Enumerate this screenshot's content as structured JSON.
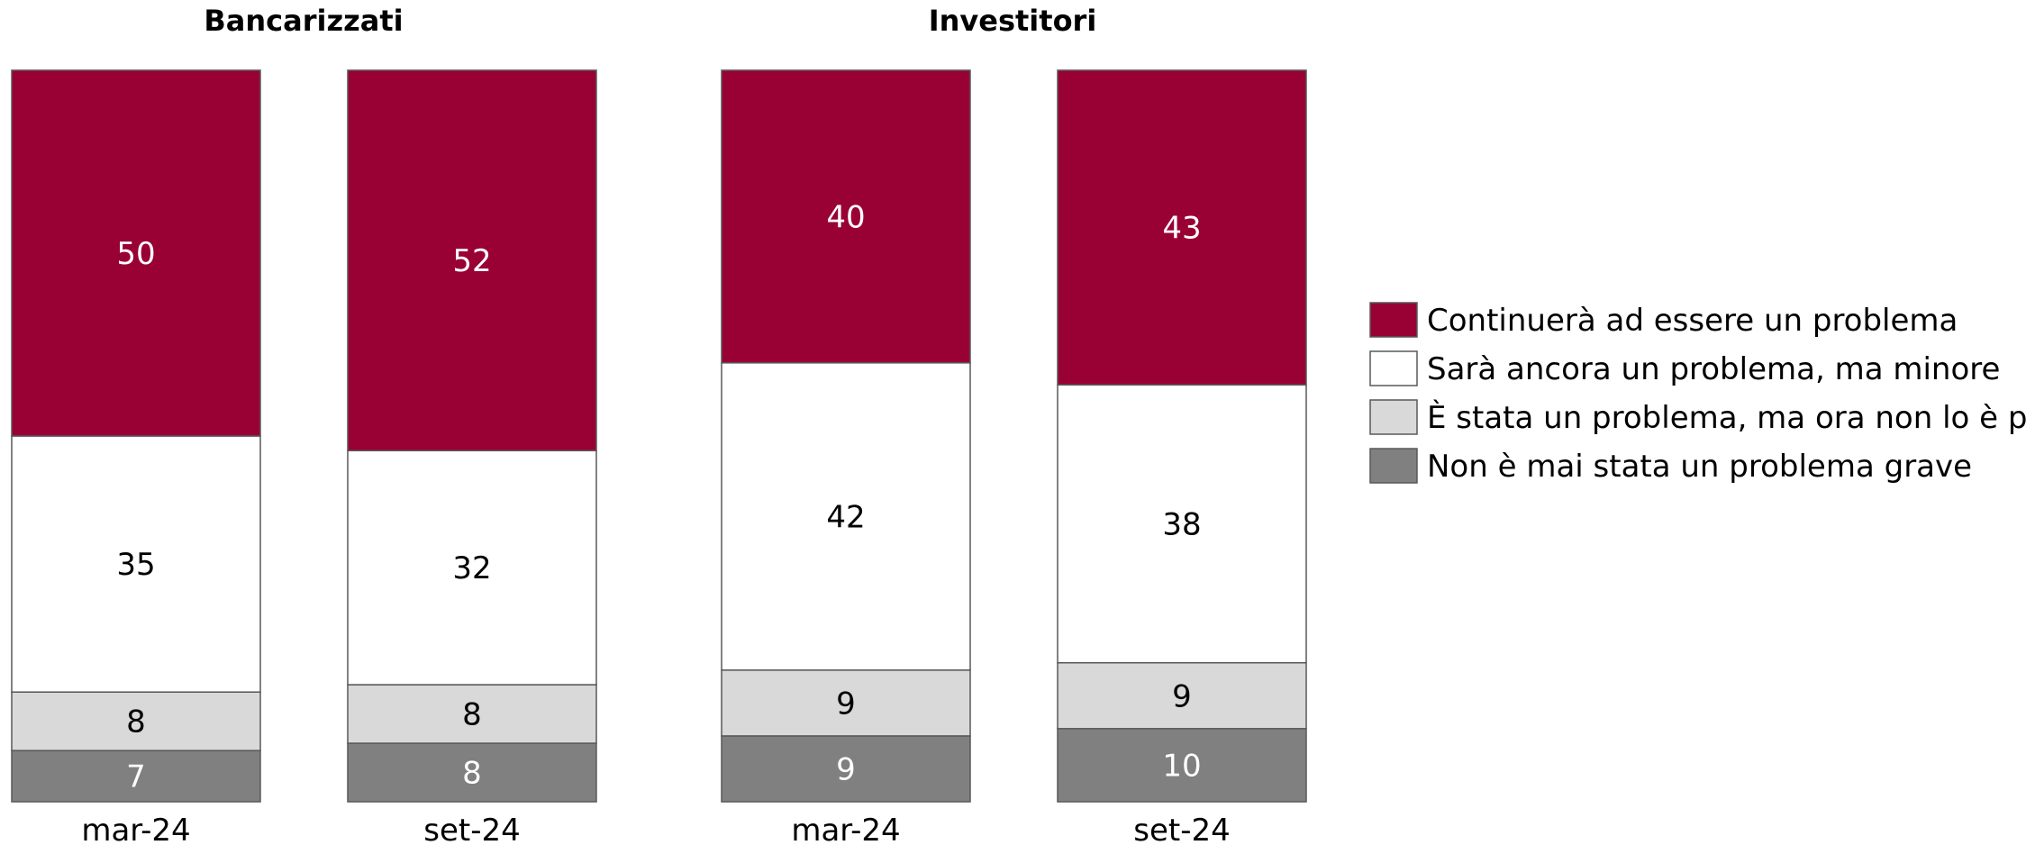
{
  "chart_data": {
    "type": "bar",
    "stacked": true,
    "normalized_total": 100,
    "panels": [
      {
        "title": "Bancarizzati",
        "categories": [
          "mar-24",
          "set-24"
        ],
        "series": [
          {
            "name": "Non è mai stata un problema grave",
            "color": "#808080",
            "values": [
              7,
              8
            ]
          },
          {
            "name": "È stata un problema, ma ora non lo è più",
            "color": "#d9d9d9",
            "values": [
              8,
              8
            ]
          },
          {
            "name": "Sarà ancora un problema, ma minore",
            "color": "#ffffff",
            "values": [
              35,
              32
            ]
          },
          {
            "name": "Continuerà ad essere un problema",
            "color": "#990033",
            "values": [
              50,
              52
            ]
          }
        ]
      },
      {
        "title": "Investitori",
        "categories": [
          "mar-24",
          "set-24"
        ],
        "series": [
          {
            "name": "Non è mai stata un problema grave",
            "color": "#808080",
            "values": [
              9,
              10
            ]
          },
          {
            "name": "È stata un problema, ma ora non lo è più",
            "color": "#d9d9d9",
            "values": [
              9,
              9
            ]
          },
          {
            "name": "Sarà ancora un problema, ma minore",
            "color": "#ffffff",
            "values": [
              42,
              38
            ]
          },
          {
            "name": "Continuerà ad essere un problema",
            "color": "#990033",
            "values": [
              40,
              43
            ]
          }
        ]
      }
    ],
    "legend": {
      "position": "right",
      "entries": [
        {
          "label": "Continuerà ad essere un problema",
          "color": "#990033"
        },
        {
          "label": "Sarà ancora un problema, ma minore",
          "color": "#ffffff"
        },
        {
          "label": "È stata un problema, ma ora non lo è più",
          "color": "#d9d9d9"
        },
        {
          "label": "Non è mai stata un problema grave",
          "color": "#808080"
        }
      ]
    },
    "grid": false
  }
}
